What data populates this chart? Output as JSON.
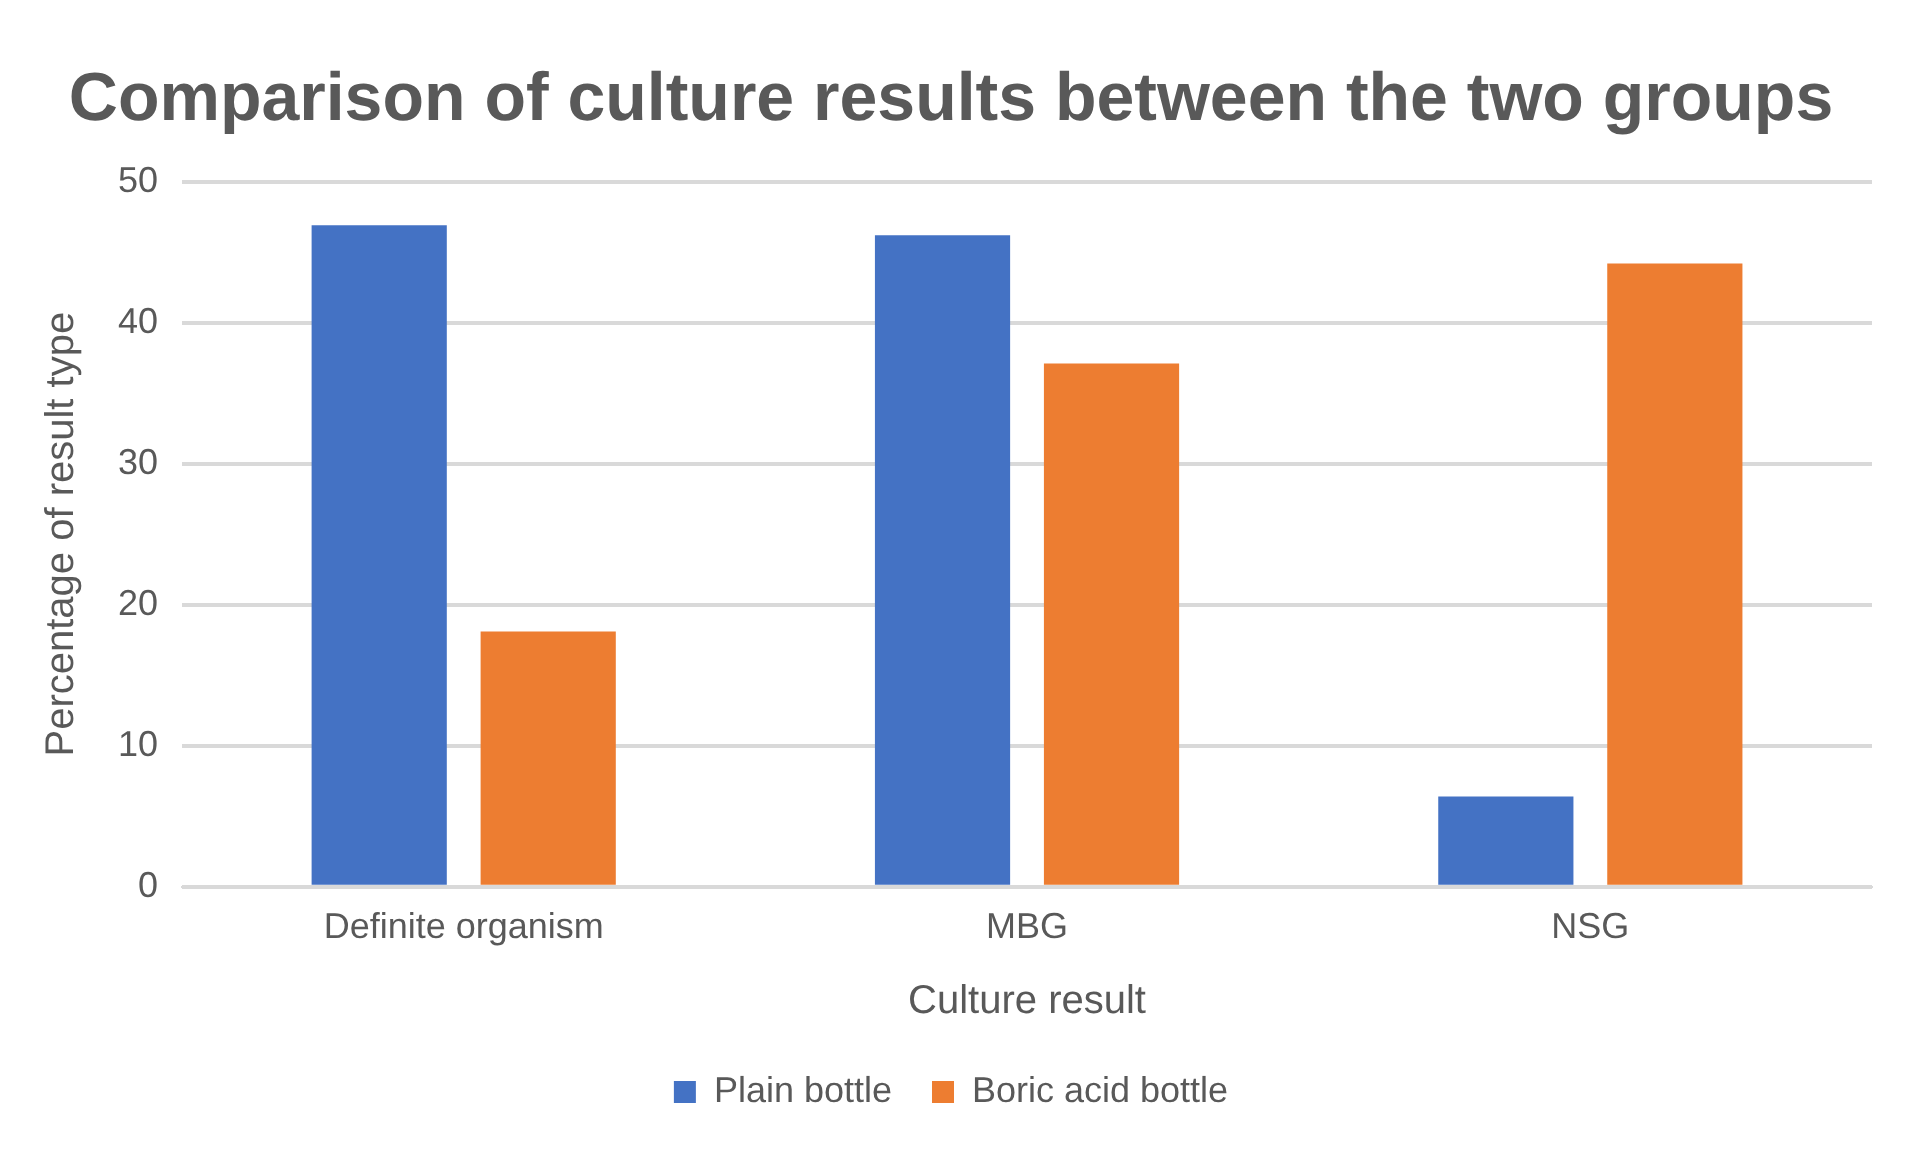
{
  "chart_data": {
    "type": "bar",
    "title": "Comparison of culture results between the two groups",
    "xlabel": "Culture result",
    "ylabel": "Percentage of result type",
    "categories": [
      "Definite organism",
      "MBG",
      "NSG"
    ],
    "series": [
      {
        "name": "Plain bottle",
        "color": "#4472c4",
        "values": [
          46.9,
          46.2,
          6.4
        ]
      },
      {
        "name": "Boric acid bottle",
        "color": "#ed7d31",
        "values": [
          18.1,
          37.1,
          44.2
        ]
      }
    ],
    "ylim": [
      0,
      50
    ],
    "yticks": [
      0,
      10,
      20,
      30,
      40,
      50
    ],
    "grid": "y",
    "legend": "bottom"
  }
}
